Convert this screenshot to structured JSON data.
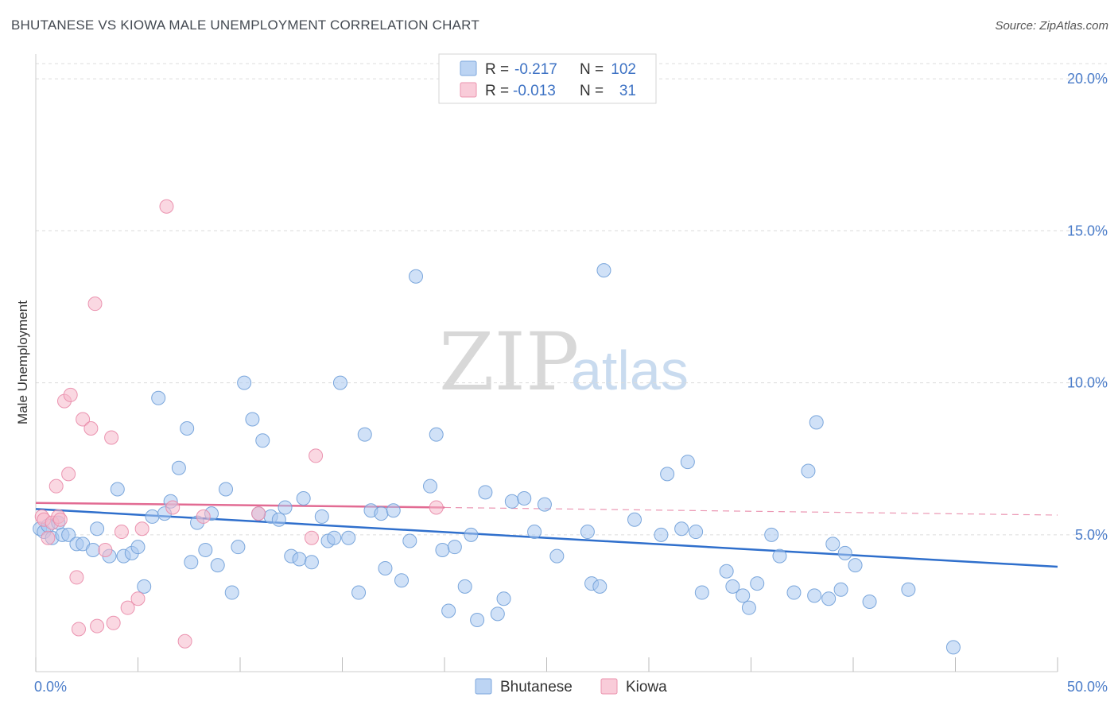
{
  "header": {
    "title": "BHUTANESE VS KIOWA MALE UNEMPLOYMENT CORRELATION CHART",
    "source": "Source: ZipAtlas.com"
  },
  "watermark": {
    "zip": "ZIP",
    "atlas": "atlas"
  },
  "legend": {
    "rows": [
      {
        "r_label": "R =",
        "r_value": "-0.217",
        "n_label": "N =",
        "n_value": "102",
        "color": "#a9c8f0"
      },
      {
        "r_label": "R =",
        "r_value": "-0.013",
        "n_label": "N =",
        "n_value": "31",
        "color": "#f5b8cb"
      }
    ]
  },
  "bottom_legend": {
    "items": [
      "Bhutanese",
      "Kiowa"
    ]
  },
  "chart_data": {
    "type": "scatter",
    "title": "BHUTANESE VS KIOWA MALE UNEMPLOYMENT CORRELATION CHART",
    "xlabel": "",
    "ylabel": "Male Unemployment",
    "xlim": [
      0,
      50
    ],
    "ylim": [
      0.5,
      20.5
    ],
    "x_tick_labels": [
      "0.0%",
      "50.0%"
    ],
    "y_ticks": [
      5,
      10,
      15,
      20
    ],
    "y_tick_labels": [
      "5.0%",
      "10.0%",
      "15.0%",
      "20.0%"
    ],
    "grid": true,
    "legend_position": "top-center",
    "series": [
      {
        "name": "Bhutanese",
        "color": "#a9c8f0",
        "stroke": "#6f9fd8",
        "trend": {
          "x": [
            0,
            50
          ],
          "y": [
            5.85,
            3.95
          ],
          "color": "#2f6fcc",
          "style": "solid"
        },
        "points": [
          [
            0.2,
            5.2
          ],
          [
            0.4,
            5.1
          ],
          [
            0.6,
            5.3
          ],
          [
            0.8,
            4.9
          ],
          [
            1.1,
            5.4
          ],
          [
            1.3,
            5.0
          ],
          [
            1.6,
            5.0
          ],
          [
            2.0,
            4.7
          ],
          [
            2.3,
            4.7
          ],
          [
            2.8,
            4.5
          ],
          [
            3.0,
            5.2
          ],
          [
            3.6,
            4.3
          ],
          [
            4.0,
            6.5
          ],
          [
            4.3,
            4.3
          ],
          [
            4.7,
            4.4
          ],
          [
            5.0,
            4.6
          ],
          [
            5.3,
            3.3
          ],
          [
            5.7,
            5.6
          ],
          [
            6.0,
            9.5
          ],
          [
            6.3,
            5.7
          ],
          [
            6.6,
            6.1
          ],
          [
            7.0,
            7.2
          ],
          [
            7.4,
            8.5
          ],
          [
            7.6,
            4.1
          ],
          [
            7.9,
            5.4
          ],
          [
            8.3,
            4.5
          ],
          [
            8.6,
            5.7
          ],
          [
            8.9,
            4.0
          ],
          [
            9.3,
            6.5
          ],
          [
            9.6,
            3.1
          ],
          [
            9.9,
            4.6
          ],
          [
            10.2,
            10.0
          ],
          [
            10.6,
            8.8
          ],
          [
            10.9,
            5.7
          ],
          [
            11.1,
            8.1
          ],
          [
            11.5,
            5.6
          ],
          [
            11.9,
            5.5
          ],
          [
            12.2,
            5.9
          ],
          [
            12.5,
            4.3
          ],
          [
            12.9,
            4.2
          ],
          [
            13.1,
            6.2
          ],
          [
            13.5,
            4.1
          ],
          [
            14.0,
            5.6
          ],
          [
            14.3,
            4.8
          ],
          [
            14.6,
            4.9
          ],
          [
            14.9,
            10.0
          ],
          [
            15.3,
            4.9
          ],
          [
            15.8,
            3.1
          ],
          [
            16.1,
            8.3
          ],
          [
            16.4,
            5.8
          ],
          [
            16.9,
            5.7
          ],
          [
            17.1,
            3.9
          ],
          [
            17.5,
            5.8
          ],
          [
            17.9,
            3.5
          ],
          [
            18.3,
            4.8
          ],
          [
            18.6,
            13.5
          ],
          [
            19.3,
            6.6
          ],
          [
            19.6,
            8.3
          ],
          [
            19.9,
            4.5
          ],
          [
            20.2,
            2.5
          ],
          [
            20.5,
            4.6
          ],
          [
            21.0,
            3.3
          ],
          [
            21.3,
            5.0
          ],
          [
            21.6,
            2.2
          ],
          [
            22.0,
            6.4
          ],
          [
            22.6,
            2.4
          ],
          [
            22.9,
            2.9
          ],
          [
            23.3,
            6.1
          ],
          [
            23.9,
            6.2
          ],
          [
            24.4,
            5.1
          ],
          [
            24.9,
            6.0
          ],
          [
            25.5,
            4.3
          ],
          [
            27.0,
            5.1
          ],
          [
            27.2,
            3.4
          ],
          [
            27.6,
            3.3
          ],
          [
            27.8,
            13.7
          ],
          [
            29.3,
            5.5
          ],
          [
            30.6,
            5.0
          ],
          [
            30.9,
            7.0
          ],
          [
            31.6,
            5.2
          ],
          [
            31.9,
            7.4
          ],
          [
            32.3,
            5.1
          ],
          [
            32.6,
            3.1
          ],
          [
            33.8,
            3.8
          ],
          [
            34.1,
            3.3
          ],
          [
            34.6,
            3.0
          ],
          [
            34.9,
            2.6
          ],
          [
            35.3,
            3.4
          ],
          [
            36.0,
            5.0
          ],
          [
            36.4,
            4.3
          ],
          [
            37.1,
            3.1
          ],
          [
            37.8,
            7.1
          ],
          [
            38.2,
            8.7
          ],
          [
            38.1,
            3.0
          ],
          [
            38.8,
            2.9
          ],
          [
            39.0,
            4.7
          ],
          [
            39.4,
            3.2
          ],
          [
            39.6,
            4.4
          ],
          [
            40.1,
            4.0
          ],
          [
            40.8,
            2.8
          ],
          [
            42.7,
            3.2
          ],
          [
            44.9,
            1.3
          ]
        ]
      },
      {
        "name": "Kiowa",
        "color": "#f5b8cb",
        "stroke": "#e98aa8",
        "trend": {
          "x": [
            0,
            20
          ],
          "y": [
            6.05,
            5.9
          ],
          "x_dash_end": 50,
          "y_dash_end": 5.65,
          "color": "#e26b93",
          "style": "solid-then-dashed"
        },
        "points": [
          [
            0.3,
            5.6
          ],
          [
            0.4,
            5.5
          ],
          [
            0.6,
            4.9
          ],
          [
            0.8,
            5.4
          ],
          [
            1.0,
            6.6
          ],
          [
            1.1,
            5.6
          ],
          [
            1.2,
            5.5
          ],
          [
            1.4,
            9.4
          ],
          [
            1.6,
            7.0
          ],
          [
            1.7,
            9.6
          ],
          [
            2.0,
            3.6
          ],
          [
            2.1,
            1.9
          ],
          [
            2.3,
            8.8
          ],
          [
            2.7,
            8.5
          ],
          [
            2.9,
            12.6
          ],
          [
            3.0,
            2.0
          ],
          [
            3.4,
            4.5
          ],
          [
            3.7,
            8.2
          ],
          [
            3.8,
            2.1
          ],
          [
            4.2,
            5.1
          ],
          [
            4.5,
            2.6
          ],
          [
            5.0,
            2.9
          ],
          [
            5.2,
            5.2
          ],
          [
            6.4,
            15.8
          ],
          [
            6.7,
            5.9
          ],
          [
            7.3,
            1.5
          ],
          [
            8.2,
            5.6
          ],
          [
            10.9,
            5.7
          ],
          [
            13.5,
            4.9
          ],
          [
            13.7,
            7.6
          ],
          [
            19.6,
            5.9
          ]
        ]
      }
    ]
  }
}
